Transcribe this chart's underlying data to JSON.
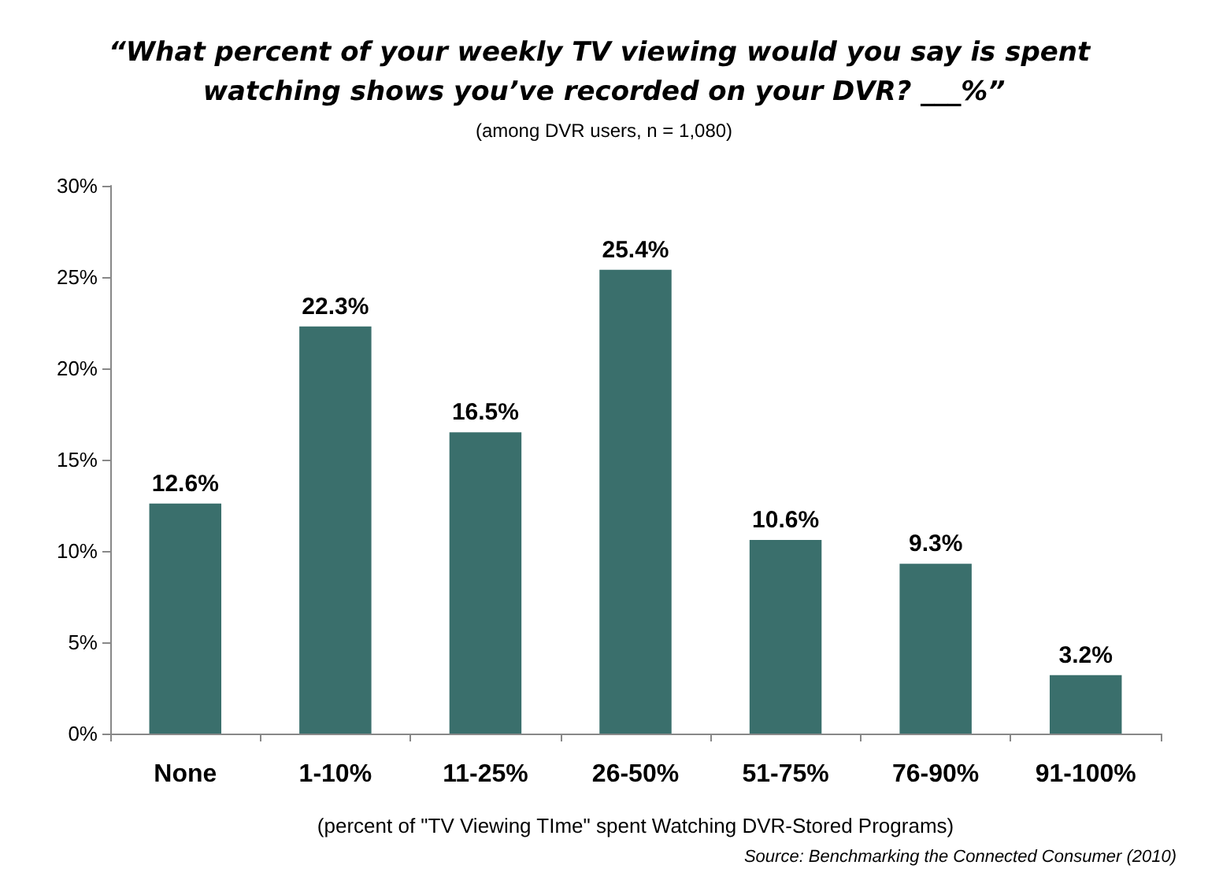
{
  "chart_data": {
    "type": "bar",
    "title": "“What percent of your weekly TV viewing would you say is spent watching shows you’ve recorded on your DVR? ___%”",
    "subtitle": "(among DVR users, n = 1,080)",
    "xlabel": "(percent of \"TV Viewing TIme\" spent Watching DVR-Stored Programs)",
    "categories": [
      "None",
      "1-10%",
      "11-25%",
      "26-50%",
      "51-75%",
      "76-90%",
      "91-100%"
    ],
    "values": [
      12.6,
      22.3,
      16.5,
      25.4,
      10.6,
      9.3,
      3.2
    ],
    "value_labels": [
      "12.6%",
      "22.3%",
      "16.5%",
      "25.4%",
      "10.6%",
      "9.3%",
      "3.2%"
    ],
    "color": "#3a6f6c",
    "ylim": [
      0,
      30
    ],
    "yticks": [
      {
        "value": 0,
        "label": "0%"
      },
      {
        "value": 5,
        "label": "5%"
      },
      {
        "value": 10,
        "label": "10%"
      },
      {
        "value": 15,
        "label": "15%"
      },
      {
        "value": 20,
        "label": "20%"
      },
      {
        "value": 25,
        "label": "25%"
      },
      {
        "value": 30,
        "label": "30%"
      }
    ],
    "grid": false,
    "annotations": [
      "Source: Benchmarking the Connected Consumer (2010)"
    ]
  }
}
